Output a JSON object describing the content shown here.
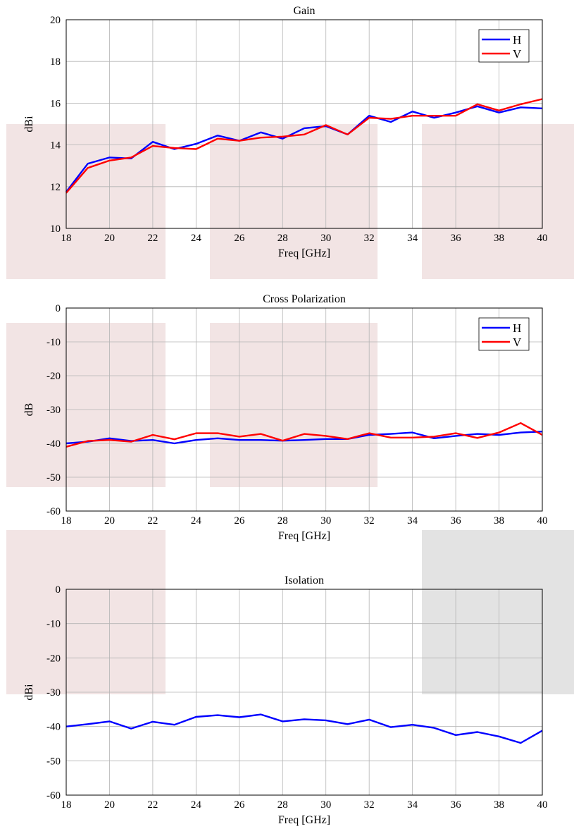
{
  "chart_data": [
    {
      "type": "line",
      "title": "Gain",
      "xlabel": "Freq [GHz]",
      "ylabel": "dBi",
      "xlim": [
        18,
        40
      ],
      "ylim": [
        10,
        20
      ],
      "xticks": [
        18,
        20,
        22,
        24,
        26,
        28,
        30,
        32,
        34,
        36,
        38,
        40
      ],
      "yticks": [
        10,
        12,
        14,
        16,
        18,
        20
      ],
      "grid": true,
      "legend": "top-right",
      "x": [
        18,
        19,
        20,
        21,
        22,
        23,
        24,
        25,
        26,
        27,
        28,
        29,
        30,
        31,
        32,
        33,
        34,
        35,
        36,
        37,
        38,
        39,
        40
      ],
      "series": [
        {
          "name": "H",
          "color": "#0000ff",
          "values": [
            11.75,
            13.1,
            13.4,
            13.35,
            14.15,
            13.8,
            14.05,
            14.45,
            14.2,
            14.6,
            14.3,
            14.8,
            14.9,
            14.5,
            15.4,
            15.1,
            15.6,
            15.3,
            15.55,
            15.85,
            15.55,
            15.8,
            15.75
          ]
        },
        {
          "name": "V",
          "color": "#ff0000",
          "values": [
            11.7,
            12.9,
            13.25,
            13.4,
            13.95,
            13.85,
            13.8,
            14.3,
            14.2,
            14.35,
            14.4,
            14.5,
            14.95,
            14.5,
            15.3,
            15.25,
            15.4,
            15.4,
            15.4,
            15.95,
            15.65,
            15.95,
            16.2
          ]
        }
      ]
    },
    {
      "type": "line",
      "title": "Cross Polarization",
      "xlabel": "Freq [GHz]",
      "ylabel": "dB",
      "xlim": [
        18,
        40
      ],
      "ylim": [
        -60,
        0
      ],
      "xticks": [
        18,
        20,
        22,
        24,
        26,
        28,
        30,
        32,
        34,
        36,
        38,
        40
      ],
      "yticks": [
        -60,
        -50,
        -40,
        -30,
        -20,
        -10,
        0
      ],
      "grid": true,
      "legend": "top-right",
      "x": [
        18,
        19,
        20,
        21,
        22,
        23,
        24,
        25,
        26,
        27,
        28,
        29,
        30,
        31,
        32,
        33,
        34,
        35,
        36,
        37,
        38,
        39,
        40
      ],
      "series": [
        {
          "name": "H",
          "color": "#0000ff",
          "values": [
            -40.0,
            -39.5,
            -38.5,
            -39.3,
            -39.0,
            -40.0,
            -39.0,
            -38.5,
            -39.0,
            -39.0,
            -39.2,
            -39.0,
            -38.7,
            -38.7,
            -37.5,
            -37.2,
            -36.8,
            -38.5,
            -37.8,
            -37.2,
            -37.5,
            -36.8,
            -36.5
          ]
        },
        {
          "name": "V",
          "color": "#ff0000",
          "values": [
            -41.0,
            -39.3,
            -39.0,
            -39.5,
            -37.5,
            -38.8,
            -37.0,
            -37.0,
            -38.0,
            -37.2,
            -39.2,
            -37.2,
            -37.8,
            -38.7,
            -37.0,
            -38.3,
            -38.3,
            -38.0,
            -37.0,
            -38.4,
            -36.8,
            -34.0,
            -37.5
          ]
        }
      ]
    },
    {
      "type": "line",
      "title": "Isolation",
      "xlabel": "Freq [GHz]",
      "ylabel": "dBi",
      "xlim": [
        18,
        40
      ],
      "ylim": [
        -60,
        0
      ],
      "xticks": [
        18,
        20,
        22,
        24,
        26,
        28,
        30,
        32,
        34,
        36,
        38,
        40
      ],
      "yticks": [
        -60,
        -50,
        -40,
        -30,
        -20,
        -10,
        0
      ],
      "grid": true,
      "legend": "none",
      "x": [
        18,
        19,
        20,
        21,
        22,
        23,
        24,
        25,
        26,
        27,
        28,
        29,
        30,
        31,
        32,
        33,
        34,
        35,
        36,
        37,
        38,
        39,
        40
      ],
      "series": [
        {
          "color": "#0000ff",
          "values": [
            -40.0,
            -39.3,
            -38.5,
            -40.6,
            -38.6,
            -39.5,
            -37.2,
            -36.7,
            -37.3,
            -36.5,
            -38.5,
            -37.9,
            -38.2,
            -39.3,
            -38.0,
            -40.2,
            -39.5,
            -40.4,
            -42.5,
            -41.6,
            -42.9,
            -44.8,
            -41.2
          ]
        }
      ]
    }
  ],
  "overlay_colors": {
    "pink": "#f2e4e4",
    "gray": "#e3e3e3"
  }
}
